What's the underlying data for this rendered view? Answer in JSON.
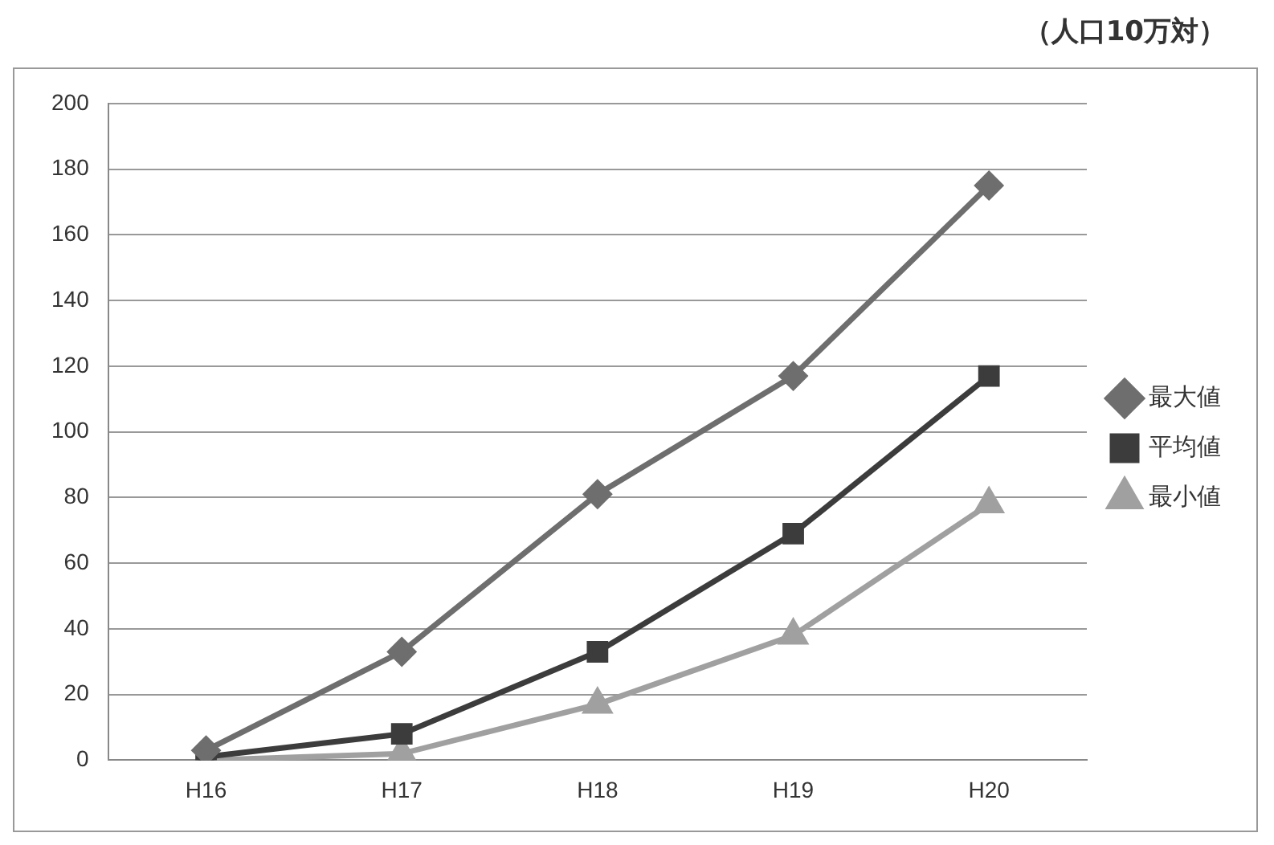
{
  "chart_data": {
    "type": "line",
    "annotations": [
      "（人口10万対）"
    ],
    "categories": [
      "H16",
      "H17",
      "H18",
      "H19",
      "H20"
    ],
    "series": [
      {
        "name": "最大値",
        "color": "#6e6e6e",
        "marker": "diamond",
        "values": [
          3,
          33,
          81,
          117,
          175
        ]
      },
      {
        "name": "平均値",
        "color": "#3c3c3c",
        "marker": "square",
        "values": [
          1,
          8,
          33,
          69,
          117
        ]
      },
      {
        "name": "最小値",
        "color": "#a0a0a0",
        "marker": "triangle",
        "values": [
          0,
          2,
          17,
          38,
          78
        ]
      }
    ],
    "ylim": [
      0,
      200
    ],
    "yticks": [
      0,
      20,
      40,
      60,
      80,
      100,
      120,
      140,
      160,
      180,
      200
    ],
    "grid": "y",
    "legend": "right"
  }
}
